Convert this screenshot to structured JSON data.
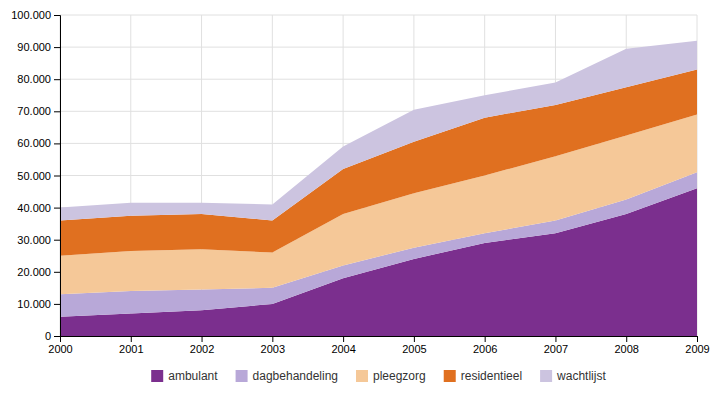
{
  "chart_data": {
    "type": "area",
    "stacked": true,
    "x": [
      2000,
      2001,
      2002,
      2003,
      2004,
      2005,
      2006,
      2007,
      2008,
      2009
    ],
    "series": [
      {
        "name": "ambulant",
        "color": "#7b2f8e",
        "values": [
          6000,
          7000,
          8000,
          10000,
          18000,
          24000,
          29000,
          32000,
          38000,
          46000
        ]
      },
      {
        "name": "dagbehandeling",
        "color": "#b8a8d8",
        "values": [
          7000,
          7000,
          6500,
          5000,
          4000,
          3500,
          3000,
          4000,
          4500,
          5000
        ]
      },
      {
        "name": "pleegzorg",
        "color": "#f5c898",
        "values": [
          12000,
          12500,
          12500,
          11000,
          16000,
          17000,
          18000,
          20000,
          20000,
          18000
        ]
      },
      {
        "name": "residentieel",
        "color": "#e07020",
        "values": [
          11000,
          11000,
          11000,
          10000,
          14000,
          16000,
          18000,
          16000,
          15000,
          14000
        ]
      },
      {
        "name": "wachtlijst",
        "color": "#ccc4e0",
        "values": [
          4000,
          4000,
          3500,
          5000,
          7000,
          10000,
          7000,
          7000,
          12000,
          9000
        ]
      }
    ],
    "xlim": [
      2000,
      2009
    ],
    "xticks": [
      2000,
      2001,
      2002,
      2003,
      2004,
      2005,
      2006,
      2007,
      2008,
      2009
    ],
    "ylim": [
      0,
      100000
    ],
    "yticks": [
      0,
      {
        "value": 10000,
        "label": "10.000"
      },
      {
        "value": 20000,
        "label": "20.000"
      },
      {
        "value": 30000,
        "label": "30.000"
      },
      {
        "value": 40000,
        "label": "40.000"
      },
      {
        "value": 50000,
        "label": "50.000"
      },
      {
        "value": 60000,
        "label": "60.000"
      },
      {
        "value": 70000,
        "label": "70.000"
      },
      {
        "value": 80000,
        "label": "80.000"
      },
      {
        "value": 90000,
        "label": "90.000"
      },
      {
        "value": 100000,
        "label": "100.000"
      }
    ],
    "grid": true,
    "legend": "bottom"
  }
}
